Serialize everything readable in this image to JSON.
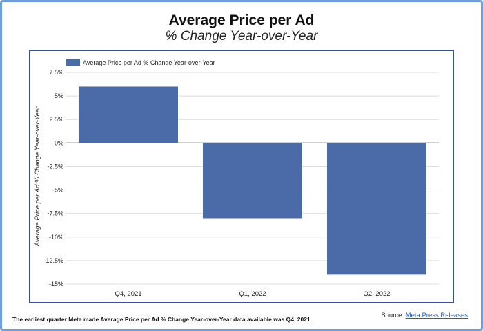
{
  "title": "Average Price per Ad",
  "subtitle": "% Change Year-over-Year",
  "footnote": "The earliest quarter Meta made Average Price per Ad % Change Year-over-Year data available was Q4, 2021",
  "source": {
    "prefix": "Source:",
    "link_text": "Meta Press Releases"
  },
  "colors": {
    "bar": "#4a6aa8",
    "frame_border": "#6f9fd8",
    "chart_border": "#34509e",
    "link": "#1a5ed6"
  },
  "chart_data": {
    "type": "bar",
    "categories": [
      "Q4, 2021",
      "Q1, 2022",
      "Q2, 2022"
    ],
    "series": [
      {
        "name": "Average Price per Ad % Change Year-over-Year",
        "values": [
          6,
          -8,
          -14
        ]
      }
    ],
    "ylabel": "Average Price per Ad % Change Year-over-Year",
    "xlabel": "",
    "ylim": [
      -15,
      7.5
    ],
    "yticks": [
      7.5,
      5,
      2.5,
      0,
      -2.5,
      -5,
      -7.5,
      -10,
      -12.5,
      -15
    ],
    "ytick_labels": [
      "7.5%",
      "5%",
      "2.5%",
      "0%",
      "-2.5%",
      "-5%",
      "-7.5%",
      "-10%",
      "-12.5%",
      "-15%"
    ],
    "grid": true,
    "legend": "top-left"
  }
}
